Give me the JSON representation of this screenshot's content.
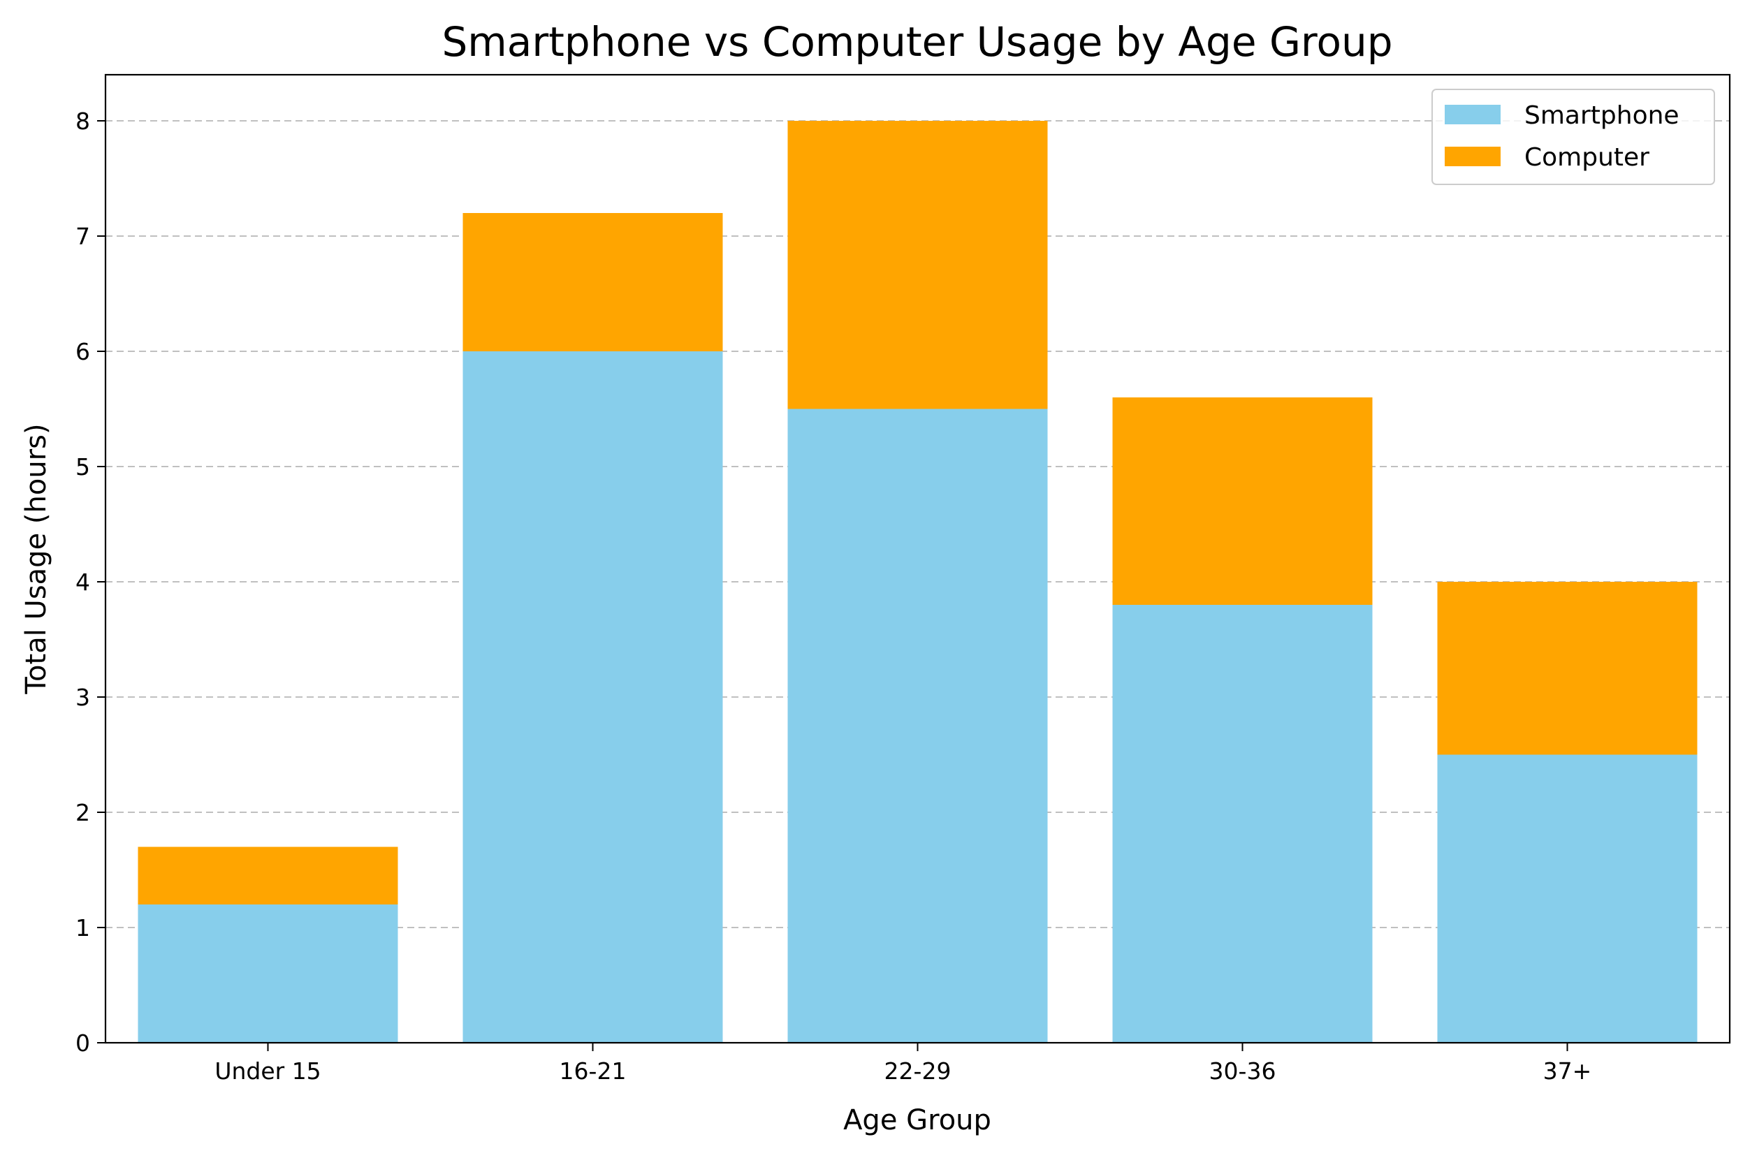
{
  "chart_data": {
    "type": "bar",
    "stacked": true,
    "title": "Smartphone vs Computer Usage by Age Group",
    "xlabel": "Age Group",
    "ylabel": "Total Usage (hours)",
    "categories": [
      "Under 15",
      "16-21",
      "22-29",
      "30-36",
      "37+"
    ],
    "series": [
      {
        "name": "Smartphone",
        "color": "#87ceeb",
        "values": [
          1.2,
          6.0,
          5.5,
          3.8,
          2.5
        ]
      },
      {
        "name": "Computer",
        "color": "#ffa500",
        "values": [
          0.5,
          1.2,
          2.5,
          1.8,
          1.5
        ]
      }
    ],
    "ylim": [
      0,
      8.4
    ],
    "yticks": [
      0,
      1,
      2,
      3,
      4,
      5,
      6,
      7,
      8
    ],
    "grid": {
      "axis": "y",
      "style": "dashed",
      "color": "#c0c0c0"
    },
    "legend": {
      "placement": "top-right"
    }
  }
}
